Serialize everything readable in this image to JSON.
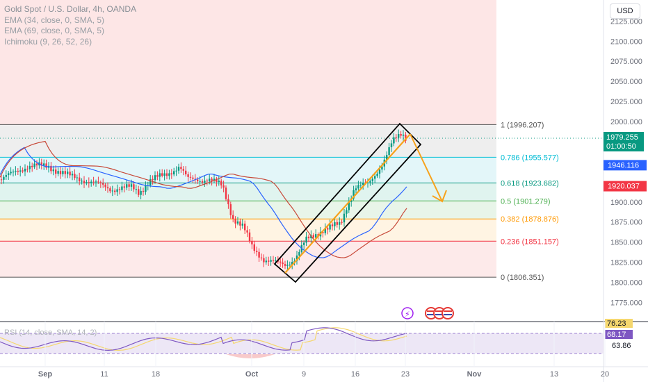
{
  "legend": {
    "title": "Gold Spot / U.S. Dollar, 4h, OANDA",
    "ema1": "EMA (34, close, 0, SMA, 5)",
    "ema2": "EMA (69, close, 0, SMA, 5)",
    "ichimoku": "Ichimoku (9, 26, 52, 26)"
  },
  "currency_button": "USD",
  "price_axis": [
    "2125.000",
    "2100.000",
    "2075.000",
    "2050.000",
    "2025.000",
    "2000.000",
    "1900.000",
    "1875.000",
    "1850.000",
    "1825.000",
    "1800.000",
    "1775.000"
  ],
  "time_axis": [
    "Sep",
    "11",
    "18",
    "Oct",
    "9",
    "16",
    "23",
    "Nov",
    "13",
    "20"
  ],
  "fib_levels": [
    {
      "ratio": "1",
      "price": 1996.207,
      "label": "1 (1996.207)",
      "color": "#555555"
    },
    {
      "ratio": "0.786",
      "price": 1955.577,
      "label": "0.786 (1955.577)",
      "color": "#00bcd4"
    },
    {
      "ratio": "0.618",
      "price": 1923.682,
      "label": "0.618 (1923.682)",
      "color": "#089981"
    },
    {
      "ratio": "0.5",
      "price": 1901.279,
      "label": "0.5 (1901.279)",
      "color": "#4caf50"
    },
    {
      "ratio": "0.382",
      "price": 1878.876,
      "label": "0.382 (1878.876)",
      "color": "#ff9800"
    },
    {
      "ratio": "0.236",
      "price": 1851.157,
      "label": "0.236 (1851.157)",
      "color": "#f23645"
    },
    {
      "ratio": "0",
      "price": 1806.351,
      "label": "0 (1806.351)",
      "color": "#555555"
    }
  ],
  "price_labels": {
    "current": {
      "value": "1979.255",
      "countdown": "01:00:50",
      "color": "#089981"
    },
    "ema34": {
      "value": "1946.116",
      "color": "#2962ff"
    },
    "ema69": {
      "value": "1920.037",
      "color": "#f23645"
    }
  },
  "rsi": {
    "label": "RSI (14, close, SMA, 14, 2)",
    "values": {
      "a": "76.23",
      "b": "68.17",
      "c": "63.86"
    }
  },
  "chart_data": {
    "type": "candlestick",
    "symbol": "XAUUSD",
    "interval": "4h",
    "y_range": [
      1760,
      2140
    ],
    "close_path": [
      [
        "Sep",
        1928
      ],
      [
        "Sep+2",
        1945
      ],
      [
        "Sep+4",
        1944
      ],
      [
        "11",
        1925
      ],
      [
        "13",
        1915
      ],
      [
        "15",
        1923
      ],
      [
        "18",
        1930
      ],
      [
        "19",
        1944
      ],
      [
        "20",
        1925
      ],
      [
        "22",
        1925
      ],
      [
        "25",
        1915
      ],
      [
        "26",
        1905
      ],
      [
        "27",
        1878
      ],
      [
        "28",
        1866
      ],
      [
        "29",
        1848
      ],
      [
        "Oct",
        1835
      ],
      [
        "Oct+2",
        1822
      ],
      [
        "Oct+3",
        1824
      ],
      [
        "Oct+4",
        1825
      ],
      [
        "9",
        1840
      ],
      [
        "10",
        1860
      ],
      [
        "11",
        1872
      ],
      [
        "12",
        1875
      ],
      [
        "13",
        1880
      ],
      [
        "16",
        1920
      ],
      [
        "17",
        1922
      ],
      [
        "18",
        1940
      ],
      [
        "19",
        1968
      ],
      [
        "20",
        1978
      ],
      [
        "23",
        1985
      ],
      [
        "23+",
        1979.255
      ]
    ],
    "annotations": [
      "ascending channel",
      "projected drop to 0.5 fib level"
    ]
  }
}
